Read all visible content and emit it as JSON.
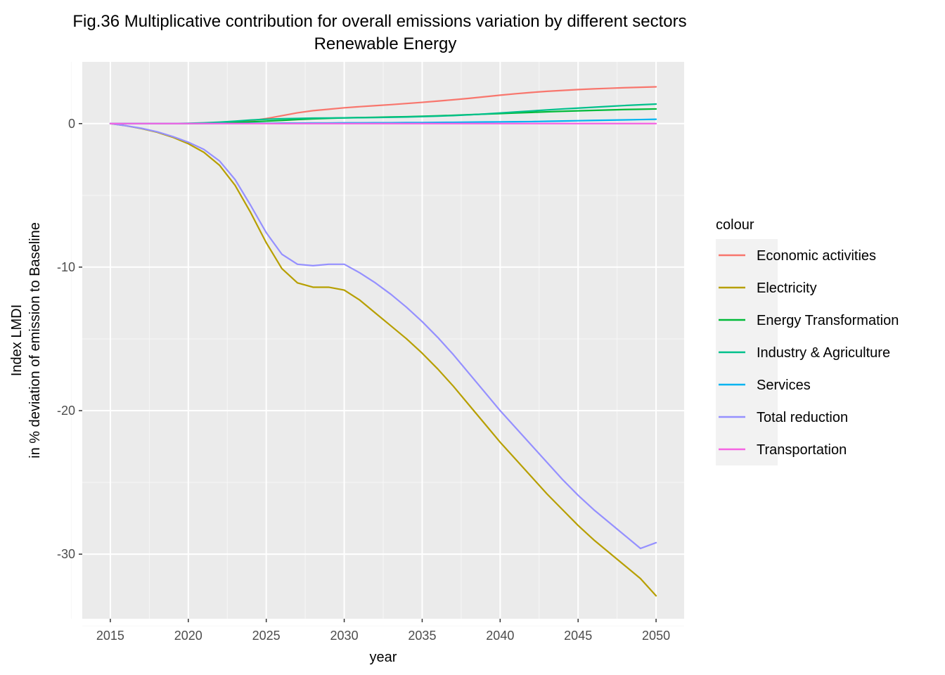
{
  "chart_data": {
    "type": "line",
    "title": "Fig.36 Multiplicative contribution for overall emissions variation by different sectors",
    "subtitle": "Renewable Energy",
    "xlabel": "year",
    "ylabel_line1": "Index LMDI",
    "ylabel_line2": "in % deviation of emission to Baseline",
    "xlim": [
      2013.2,
      2051.8
    ],
    "ylim": [
      -34.5,
      4.3
    ],
    "x_ticks": [
      2015,
      2020,
      2025,
      2030,
      2035,
      2040,
      2045,
      2050
    ],
    "x_tick_labels": [
      "2015",
      "2020",
      "2025",
      "2030",
      "2035",
      "2040",
      "2045",
      "2050"
    ],
    "y_ticks": [
      0,
      -10,
      -20,
      -30
    ],
    "y_tick_labels": [
      "0",
      "-10",
      "-20",
      "-30"
    ],
    "grid": true,
    "legend": {
      "title": "colour",
      "position": "right"
    },
    "x": [
      2015,
      2016,
      2017,
      2018,
      2019,
      2020,
      2021,
      2022,
      2023,
      2024,
      2025,
      2026,
      2027,
      2028,
      2029,
      2030,
      2031,
      2032,
      2033,
      2034,
      2035,
      2036,
      2037,
      2038,
      2039,
      2040,
      2041,
      2042,
      2043,
      2044,
      2045,
      2046,
      2047,
      2048,
      2049,
      2050
    ],
    "series": [
      {
        "name": "Economic activities",
        "color": "#F8766D",
        "values": [
          0,
          0,
          0,
          0,
          0,
          0,
          0.02,
          0.05,
          0.1,
          0.2,
          0.35,
          0.55,
          0.75,
          0.9,
          1.0,
          1.1,
          1.18,
          1.25,
          1.32,
          1.4,
          1.48,
          1.57,
          1.66,
          1.76,
          1.87,
          1.98,
          2.08,
          2.17,
          2.25,
          2.31,
          2.37,
          2.42,
          2.46,
          2.5,
          2.53,
          2.56
        ]
      },
      {
        "name": "Electricity",
        "color": "#B79F00",
        "values": [
          0,
          -0.15,
          -0.35,
          -0.6,
          -0.95,
          -1.4,
          -2.0,
          -2.9,
          -4.3,
          -6.2,
          -8.3,
          -10.1,
          -11.1,
          -11.4,
          -11.4,
          -11.6,
          -12.3,
          -13.2,
          -14.1,
          -15.0,
          -16.0,
          -17.1,
          -18.3,
          -19.6,
          -20.9,
          -22.2,
          -23.4,
          -24.6,
          -25.8,
          -26.9,
          -28.0,
          -29.0,
          -29.9,
          -30.8,
          -31.7,
          -32.9
        ]
      },
      {
        "name": "Energy Transformation",
        "color": "#00BA38",
        "values": [
          0,
          0,
          0,
          0,
          0,
          0,
          0.02,
          0.04,
          0.08,
          0.12,
          0.17,
          0.22,
          0.28,
          0.33,
          0.37,
          0.4,
          0.42,
          0.44,
          0.46,
          0.48,
          0.51,
          0.54,
          0.58,
          0.62,
          0.66,
          0.7,
          0.74,
          0.78,
          0.82,
          0.86,
          0.89,
          0.92,
          0.95,
          0.98,
          1.0,
          1.02
        ]
      },
      {
        "name": "Industry & Agriculture",
        "color": "#00C08B",
        "values": [
          0,
          0,
          0,
          0,
          0,
          0.02,
          0.05,
          0.1,
          0.17,
          0.25,
          0.3,
          0.34,
          0.36,
          0.38,
          0.39,
          0.4,
          0.41,
          0.42,
          0.44,
          0.46,
          0.49,
          0.52,
          0.56,
          0.61,
          0.67,
          0.74,
          0.81,
          0.88,
          0.95,
          1.02,
          1.08,
          1.14,
          1.2,
          1.26,
          1.31,
          1.36
        ]
      },
      {
        "name": "Services",
        "color": "#00B4F0",
        "values": [
          0,
          0,
          0,
          0,
          0,
          0,
          0,
          0.01,
          0.01,
          0.02,
          0.02,
          0.03,
          0.03,
          0.04,
          0.04,
          0.05,
          0.05,
          0.06,
          0.06,
          0.07,
          0.07,
          0.08,
          0.09,
          0.1,
          0.11,
          0.12,
          0.13,
          0.14,
          0.16,
          0.18,
          0.2,
          0.22,
          0.24,
          0.26,
          0.28,
          0.3
        ]
      },
      {
        "name": "Total reduction",
        "color": "#9590FF",
        "values": [
          0,
          -0.15,
          -0.33,
          -0.57,
          -0.9,
          -1.3,
          -1.8,
          -2.6,
          -3.9,
          -5.7,
          -7.6,
          -9.1,
          -9.8,
          -9.9,
          -9.8,
          -9.8,
          -10.4,
          -11.1,
          -11.9,
          -12.8,
          -13.8,
          -14.9,
          -16.1,
          -17.4,
          -18.7,
          -20.0,
          -21.2,
          -22.4,
          -23.6,
          -24.8,
          -25.9,
          -26.9,
          -27.8,
          -28.7,
          -29.6,
          -29.2
        ]
      },
      {
        "name": "Transportation",
        "color": "#F564E3",
        "values": [
          0,
          0,
          0,
          0,
          0,
          0,
          0,
          0,
          0,
          0,
          0,
          0,
          0,
          0,
          0,
          0,
          0,
          0,
          0,
          0,
          0,
          0,
          0,
          0,
          0,
          0,
          0,
          0,
          0,
          0,
          0,
          0,
          0,
          0,
          0,
          0
        ]
      }
    ]
  }
}
